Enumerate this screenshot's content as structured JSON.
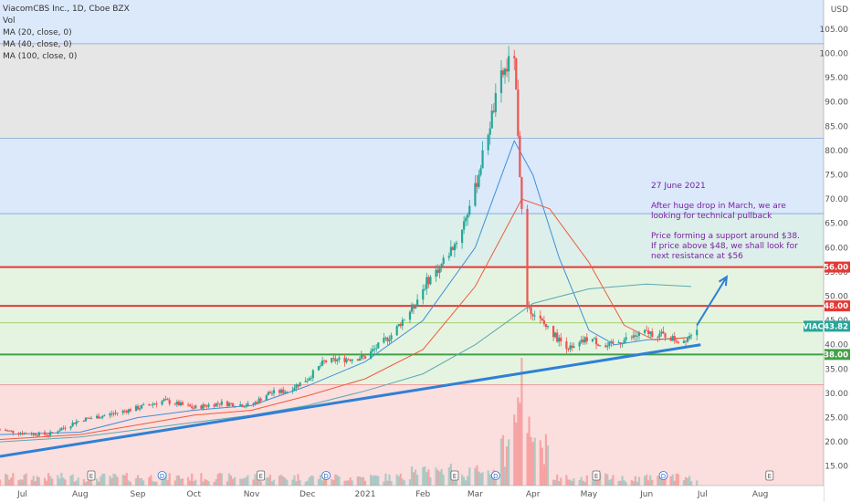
{
  "legend": {
    "symbol": "ViacomCBS Inc., 1D, Cboe BZX",
    "vol": "Vol",
    "ma20": "MA (20, close, 0)",
    "ma40": "MA (40, close, 0)",
    "ma100": "MA (100, close, 0)"
  },
  "annotation": {
    "date": "27 June 2021",
    "line1": "After huge drop in March, we are",
    "line2": "looking for technical pullback",
    "line3": "Price forming a support around $38.",
    "line4": "If price above $48, we shall look for",
    "line5": "next resistance at $56"
  },
  "chart_data": {
    "type": "candlestick",
    "currency": "USD",
    "y_ticks": [
      "15.00",
      "20.00",
      "25.00",
      "30.00",
      "35.00",
      "40.00",
      "45.00",
      "50.00",
      "55.00",
      "60.00",
      "65.00",
      "70.00",
      "75.00",
      "80.00",
      "85.00",
      "90.00",
      "95.00",
      "100.00",
      "105.00"
    ],
    "ylim": [
      11,
      111
    ],
    "x_ticks": [
      "Jul",
      "Aug",
      "Sep",
      "Oct",
      "Nov",
      "Dec",
      "2021",
      "Feb",
      "Mar",
      "Apr",
      "May",
      "Jun",
      "Jul",
      "Aug"
    ],
    "horizontal_levels": [
      {
        "price": 56.0,
        "label": "56.00",
        "color": "#e53935"
      },
      {
        "price": 48.0,
        "label": "48.00",
        "color": "#e53935"
      },
      {
        "price": 38.0,
        "label": "38.00",
        "color": "#43a047"
      }
    ],
    "current_price": {
      "ticker": "VIAC",
      "value": "43.82",
      "color": "#26a69a"
    },
    "zones": [
      {
        "from": 102.0,
        "to": 111.0,
        "color": "#dbe9fb"
      },
      {
        "from": 82.5,
        "to": 102.0,
        "color": "#e6e6e6"
      },
      {
        "from": 67.0,
        "to": 82.5,
        "color": "#dbe9fb"
      },
      {
        "from": 56.0,
        "to": 67.0,
        "color": "#dcefea"
      },
      {
        "from": 31.8,
        "to": 56.0,
        "color": "#e5f4e1"
      },
      {
        "from": 11.0,
        "to": 31.8,
        "color": "#fbdede"
      }
    ],
    "trendline": {
      "from": {
        "date": "2020-06-19",
        "price": 17.0
      },
      "to": {
        "date": "2021-06-30",
        "price": 40.0
      }
    },
    "projection_arrow": {
      "from": {
        "date": "2021-06-28",
        "price": 44.0
      },
      "to": {
        "date": "2021-07-14",
        "price": 54.0
      }
    },
    "key_path": [
      [
        "2020-06-19",
        22.5
      ],
      [
        "2020-07-01",
        21.8
      ],
      [
        "2020-07-15",
        21.5
      ],
      [
        "2020-08-01",
        24.5
      ],
      [
        "2020-08-15",
        25.5
      ],
      [
        "2020-09-01",
        27.0
      ],
      [
        "2020-09-15",
        28.5
      ],
      [
        "2020-10-01",
        27.0
      ],
      [
        "2020-10-15",
        28.0
      ],
      [
        "2020-11-01",
        27.5
      ],
      [
        "2020-11-10",
        30.0
      ],
      [
        "2020-11-20",
        30.5
      ],
      [
        "2020-12-01",
        33.0
      ],
      [
        "2020-12-10",
        36.5
      ],
      [
        "2020-12-20",
        37.0
      ],
      [
        "2021-01-01",
        37.5
      ],
      [
        "2021-01-15",
        42.0
      ],
      [
        "2021-01-27",
        48.0
      ],
      [
        "2021-02-03",
        53.0
      ],
      [
        "2021-02-10",
        56.0
      ],
      [
        "2021-02-20",
        62.0
      ],
      [
        "2021-03-01",
        72.0
      ],
      [
        "2021-03-08",
        84.0
      ],
      [
        "2021-03-15",
        95.0
      ],
      [
        "2021-03-22",
        100.0
      ],
      [
        "2021-03-24",
        84.0
      ],
      [
        "2021-03-26",
        67.0
      ],
      [
        "2021-03-29",
        48.0
      ],
      [
        "2021-04-05",
        45.0
      ],
      [
        "2021-04-15",
        41.0
      ],
      [
        "2021-04-22",
        39.0
      ],
      [
        "2021-05-01",
        41.5
      ],
      [
        "2021-05-10",
        39.5
      ],
      [
        "2021-05-20",
        41.0
      ],
      [
        "2021-06-01",
        42.5
      ],
      [
        "2021-06-10",
        42.0
      ],
      [
        "2021-06-20",
        40.5
      ],
      [
        "2021-06-28",
        43.82
      ]
    ],
    "ma_series": [
      {
        "name": "MA (20, close, 0)",
        "color": "#3f8fd8",
        "points": [
          [
            "2020-06-19",
            21.5
          ],
          [
            "2020-08-01",
            22.0
          ],
          [
            "2020-09-01",
            25.0
          ],
          [
            "2020-10-01",
            26.5
          ],
          [
            "2020-11-01",
            27.5
          ],
          [
            "2020-12-01",
            31.5
          ],
          [
            "2021-01-01",
            36.5
          ],
          [
            "2021-02-01",
            45.0
          ],
          [
            "2021-03-01",
            60.0
          ],
          [
            "2021-03-22",
            82.0
          ],
          [
            "2021-04-01",
            75.0
          ],
          [
            "2021-04-15",
            58.0
          ],
          [
            "2021-05-01",
            43.0
          ],
          [
            "2021-05-15",
            40.0
          ],
          [
            "2021-06-01",
            41.0
          ],
          [
            "2021-06-25",
            41.5
          ]
        ]
      },
      {
        "name": "MA (40, close, 0)",
        "color": "#ef5b3b",
        "points": [
          [
            "2020-06-19",
            20.5
          ],
          [
            "2020-08-01",
            21.5
          ],
          [
            "2020-09-01",
            23.5
          ],
          [
            "2020-10-01",
            25.5
          ],
          [
            "2020-11-01",
            26.5
          ],
          [
            "2020-12-01",
            29.5
          ],
          [
            "2021-01-01",
            33.0
          ],
          [
            "2021-02-01",
            39.0
          ],
          [
            "2021-03-01",
            52.0
          ],
          [
            "2021-03-26",
            70.0
          ],
          [
            "2021-04-10",
            68.0
          ],
          [
            "2021-05-01",
            57.0
          ],
          [
            "2021-05-20",
            44.0
          ],
          [
            "2021-06-05",
            41.0
          ],
          [
            "2021-06-25",
            41.5
          ]
        ]
      },
      {
        "name": "MA (100, close, 0)",
        "color": "#5aa9b0",
        "points": [
          [
            "2020-06-19",
            20.0
          ],
          [
            "2020-08-01",
            21.0
          ],
          [
            "2020-09-01",
            22.5
          ],
          [
            "2020-10-01",
            24.0
          ],
          [
            "2020-11-01",
            25.5
          ],
          [
            "2020-12-01",
            27.5
          ],
          [
            "2021-01-01",
            30.5
          ],
          [
            "2021-02-01",
            34.0
          ],
          [
            "2021-03-01",
            40.0
          ],
          [
            "2021-04-01",
            48.5
          ],
          [
            "2021-05-01",
            51.5
          ],
          [
            "2021-06-01",
            52.5
          ],
          [
            "2021-06-25",
            52.0
          ]
        ]
      }
    ],
    "volume_spike": {
      "date": "2021-03-26",
      "relative": 1.0
    }
  }
}
